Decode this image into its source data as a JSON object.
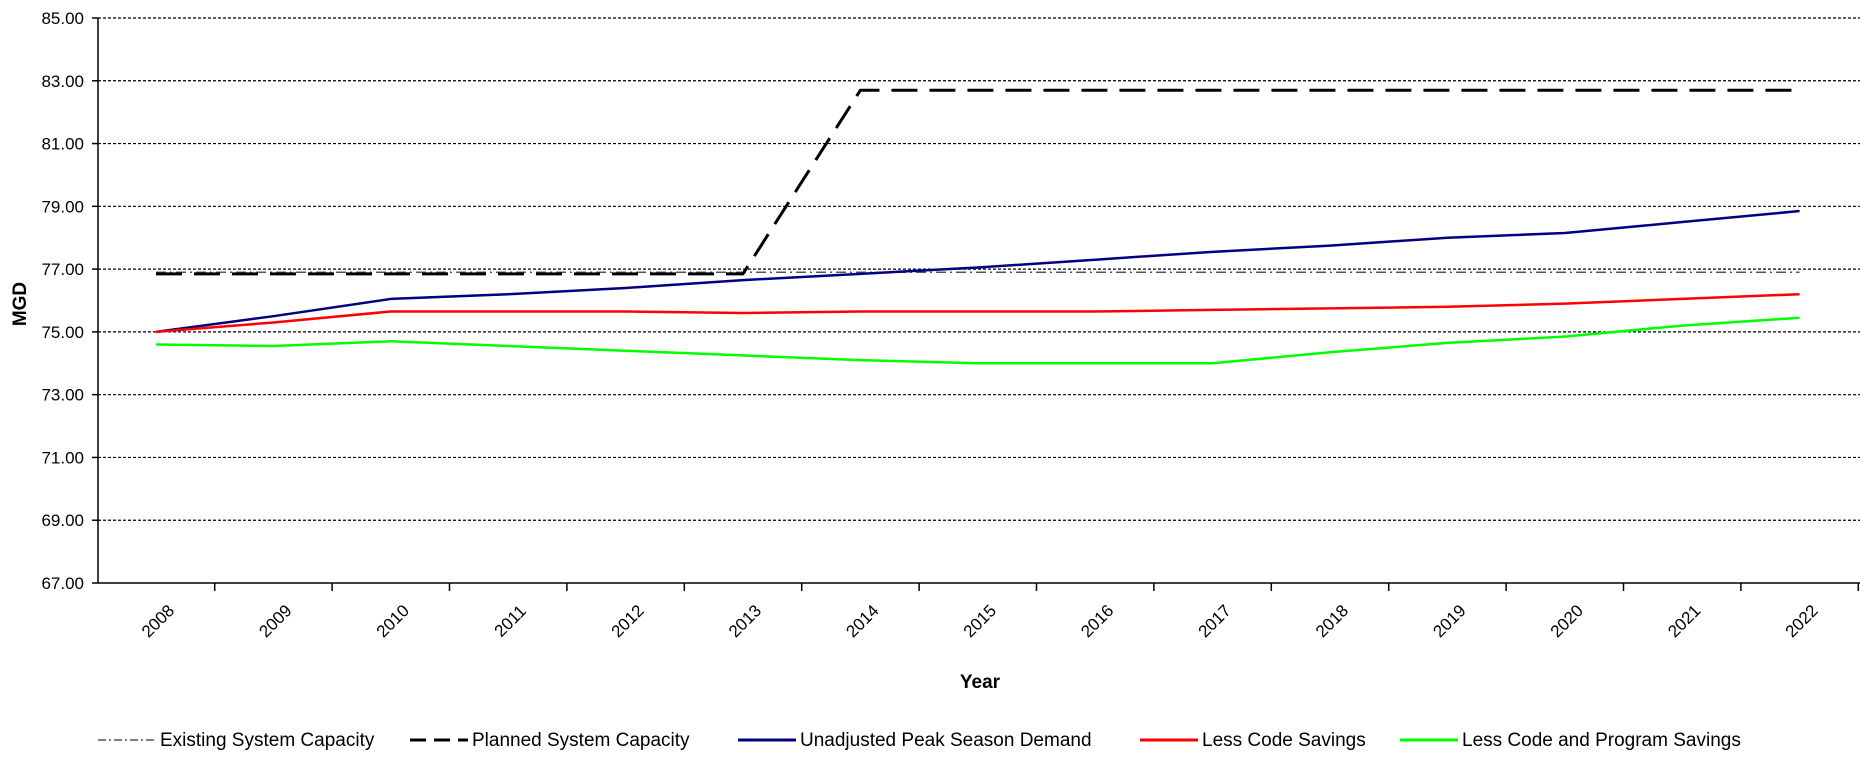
{
  "chart_data": {
    "type": "line",
    "title": "",
    "xlabel": "Year",
    "ylabel": "MGD",
    "x": [
      "2008",
      "2009",
      "2010",
      "2011",
      "2012",
      "2013",
      "2014",
      "2015",
      "2016",
      "2017",
      "2018",
      "2019",
      "2020",
      "2021",
      "2022"
    ],
    "ylim": [
      67,
      85
    ],
    "yticks": [
      "67.00",
      "69.00",
      "71.00",
      "73.00",
      "75.00",
      "77.00",
      "79.00",
      "81.00",
      "83.00",
      "85.00"
    ],
    "grid": "horizontal-dashed",
    "legend_position": "bottom",
    "series": [
      {
        "name": "Existing System Capacity",
        "color": "#555555",
        "line_style": "dash-dot",
        "values": [
          76.9,
          76.9,
          76.9,
          76.9,
          76.9,
          76.9,
          76.9,
          76.9,
          76.9,
          76.9,
          76.9,
          76.9,
          76.9,
          76.9,
          76.9
        ]
      },
      {
        "name": "Planned System Capacity",
        "color": "#000000",
        "line_style": "long-dash",
        "values": [
          76.85,
          76.85,
          76.85,
          76.85,
          76.85,
          76.85,
          82.7,
          82.7,
          82.7,
          82.7,
          82.7,
          82.7,
          82.7,
          82.7,
          82.7
        ]
      },
      {
        "name": "Unadjusted Peak Season Demand",
        "color": "#000080",
        "line_style": "solid",
        "values": [
          75.0,
          75.5,
          76.05,
          76.2,
          76.4,
          76.65,
          76.85,
          77.05,
          77.3,
          77.55,
          77.75,
          78.0,
          78.15,
          78.5,
          78.85
        ]
      },
      {
        "name": "Less Code Savings",
        "color": "#ff0000",
        "line_style": "solid",
        "values": [
          75.0,
          75.3,
          75.65,
          75.65,
          75.65,
          75.6,
          75.65,
          75.65,
          75.65,
          75.7,
          75.75,
          75.8,
          75.9,
          76.05,
          76.2
        ]
      },
      {
        "name": "Less Code and Program Savings",
        "color": "#00ff00",
        "line_style": "solid",
        "values": [
          74.6,
          74.55,
          74.7,
          74.55,
          74.4,
          74.25,
          74.1,
          74.0,
          74.0,
          74.0,
          74.35,
          74.65,
          74.85,
          75.2,
          75.45
        ]
      }
    ]
  }
}
